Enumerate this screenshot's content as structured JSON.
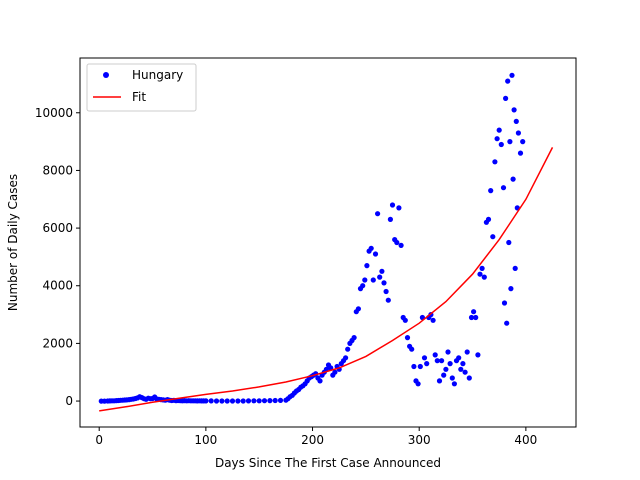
{
  "chart_data": {
    "type": "scatter",
    "xlabel": "Days Since The First Case Announced",
    "ylabel": "Number of Daily Cases",
    "xlim": [
      -18,
      447
    ],
    "ylim": [
      -900,
      11900
    ],
    "x_ticks": [
      0,
      100,
      200,
      300,
      400
    ],
    "y_ticks": [
      0,
      2000,
      4000,
      6000,
      8000,
      10000
    ],
    "grid": false,
    "legend_position": "top-left",
    "series": [
      {
        "name": "Hungary",
        "style": "markers",
        "color": "#0000ff",
        "points": [
          [
            2,
            0
          ],
          [
            5,
            0
          ],
          [
            8,
            3
          ],
          [
            10,
            5
          ],
          [
            12,
            8
          ],
          [
            14,
            10
          ],
          [
            16,
            15
          ],
          [
            18,
            20
          ],
          [
            20,
            25
          ],
          [
            22,
            30
          ],
          [
            24,
            35
          ],
          [
            26,
            40
          ],
          [
            28,
            50
          ],
          [
            30,
            60
          ],
          [
            32,
            70
          ],
          [
            34,
            90
          ],
          [
            36,
            110
          ],
          [
            38,
            150
          ],
          [
            40,
            120
          ],
          [
            42,
            80
          ],
          [
            44,
            60
          ],
          [
            46,
            100
          ],
          [
            48,
            80
          ],
          [
            50,
            90
          ],
          [
            52,
            140
          ],
          [
            54,
            70
          ],
          [
            56,
            60
          ],
          [
            58,
            50
          ],
          [
            60,
            40
          ],
          [
            62,
            30
          ],
          [
            64,
            50
          ],
          [
            66,
            30
          ],
          [
            68,
            20
          ],
          [
            70,
            25
          ],
          [
            72,
            15
          ],
          [
            74,
            20
          ],
          [
            76,
            15
          ],
          [
            78,
            10
          ],
          [
            80,
            15
          ],
          [
            82,
            10
          ],
          [
            84,
            12
          ],
          [
            86,
            10
          ],
          [
            88,
            8
          ],
          [
            90,
            10
          ],
          [
            92,
            6
          ],
          [
            94,
            8
          ],
          [
            96,
            5
          ],
          [
            98,
            6
          ],
          [
            100,
            5
          ],
          [
            105,
            4
          ],
          [
            110,
            3
          ],
          [
            115,
            3
          ],
          [
            120,
            2
          ],
          [
            125,
            2
          ],
          [
            130,
            3
          ],
          [
            135,
            3
          ],
          [
            140,
            5
          ],
          [
            145,
            8
          ],
          [
            150,
            10
          ],
          [
            155,
            12
          ],
          [
            160,
            15
          ],
          [
            165,
            20
          ],
          [
            170,
            22
          ],
          [
            175,
            30
          ],
          [
            177,
            80
          ],
          [
            179,
            150
          ],
          [
            181,
            200
          ],
          [
            183,
            280
          ],
          [
            185,
            350
          ],
          [
            187,
            400
          ],
          [
            189,
            480
          ],
          [
            191,
            530
          ],
          [
            193,
            600
          ],
          [
            195,
            700
          ],
          [
            197,
            800
          ],
          [
            199,
            850
          ],
          [
            201,
            900
          ],
          [
            203,
            950
          ],
          [
            205,
            800
          ],
          [
            207,
            700
          ],
          [
            209,
            900
          ],
          [
            211,
            1000
          ],
          [
            213,
            1100
          ],
          [
            215,
            1250
          ],
          [
            217,
            1150
          ],
          [
            219,
            900
          ],
          [
            221,
            1000
          ],
          [
            223,
            1200
          ],
          [
            225,
            1100
          ],
          [
            227,
            1300
          ],
          [
            229,
            1400
          ],
          [
            231,
            1500
          ],
          [
            233,
            1800
          ],
          [
            235,
            2000
          ],
          [
            237,
            2100
          ],
          [
            239,
            2200
          ],
          [
            241,
            3100
          ],
          [
            243,
            3200
          ],
          [
            245,
            3900
          ],
          [
            247,
            4000
          ],
          [
            249,
            4200
          ],
          [
            251,
            4700
          ],
          [
            253,
            5200
          ],
          [
            255,
            5300
          ],
          [
            257,
            4200
          ],
          [
            259,
            5100
          ],
          [
            261,
            6500
          ],
          [
            263,
            4300
          ],
          [
            265,
            4500
          ],
          [
            267,
            4100
          ],
          [
            269,
            3800
          ],
          [
            271,
            3500
          ],
          [
            273,
            6300
          ],
          [
            275,
            6800
          ],
          [
            277,
            5600
          ],
          [
            279,
            5500
          ],
          [
            281,
            6700
          ],
          [
            283,
            5400
          ],
          [
            285,
            2900
          ],
          [
            287,
            2800
          ],
          [
            289,
            2200
          ],
          [
            291,
            1900
          ],
          [
            293,
            1800
          ],
          [
            295,
            1200
          ],
          [
            297,
            700
          ],
          [
            299,
            600
          ],
          [
            301,
            1200
          ],
          [
            303,
            2900
          ],
          [
            305,
            1500
          ],
          [
            307,
            1300
          ],
          [
            309,
            2900
          ],
          [
            311,
            3000
          ],
          [
            313,
            2800
          ],
          [
            315,
            1600
          ],
          [
            317,
            1400
          ],
          [
            319,
            700
          ],
          [
            321,
            1400
          ],
          [
            323,
            900
          ],
          [
            325,
            1100
          ],
          [
            327,
            1700
          ],
          [
            329,
            1300
          ],
          [
            331,
            800
          ],
          [
            333,
            600
          ],
          [
            335,
            1400
          ],
          [
            337,
            1500
          ],
          [
            339,
            1100
          ],
          [
            341,
            1300
          ],
          [
            343,
            1000
          ],
          [
            345,
            1700
          ],
          [
            347,
            800
          ],
          [
            349,
            2900
          ],
          [
            351,
            3100
          ],
          [
            353,
            2900
          ],
          [
            355,
            1600
          ],
          [
            357,
            4400
          ],
          [
            359,
            4600
          ],
          [
            361,
            4300
          ],
          [
            363,
            6200
          ],
          [
            365,
            6300
          ],
          [
            367,
            7300
          ],
          [
            369,
            5700
          ],
          [
            371,
            8300
          ],
          [
            373,
            9100
          ],
          [
            375,
            9400
          ],
          [
            377,
            8900
          ],
          [
            379,
            7400
          ],
          [
            381,
            10500
          ],
          [
            383,
            11100
          ],
          [
            385,
            9000
          ],
          [
            387,
            11300
          ],
          [
            389,
            10100
          ],
          [
            391,
            9700
          ],
          [
            393,
            9300
          ],
          [
            395,
            8600
          ],
          [
            397,
            9000
          ],
          [
            384,
            5500
          ],
          [
            388,
            7700
          ],
          [
            390,
            4600
          ],
          [
            392,
            6700
          ],
          [
            380,
            3400
          ],
          [
            386,
            3900
          ],
          [
            382,
            2700
          ]
        ]
      },
      {
        "name": "Fit",
        "style": "line",
        "color": "#ff0000",
        "points": [
          [
            0,
            -340
          ],
          [
            25,
            -200
          ],
          [
            50,
            -40
          ],
          [
            75,
            100
          ],
          [
            100,
            230
          ],
          [
            125,
            350
          ],
          [
            150,
            490
          ],
          [
            175,
            660
          ],
          [
            200,
            880
          ],
          [
            225,
            1150
          ],
          [
            250,
            1550
          ],
          [
            275,
            2100
          ],
          [
            300,
            2700
          ],
          [
            325,
            3450
          ],
          [
            350,
            4400
          ],
          [
            375,
            5600
          ],
          [
            400,
            7000
          ],
          [
            425,
            8800
          ]
        ]
      }
    ]
  }
}
